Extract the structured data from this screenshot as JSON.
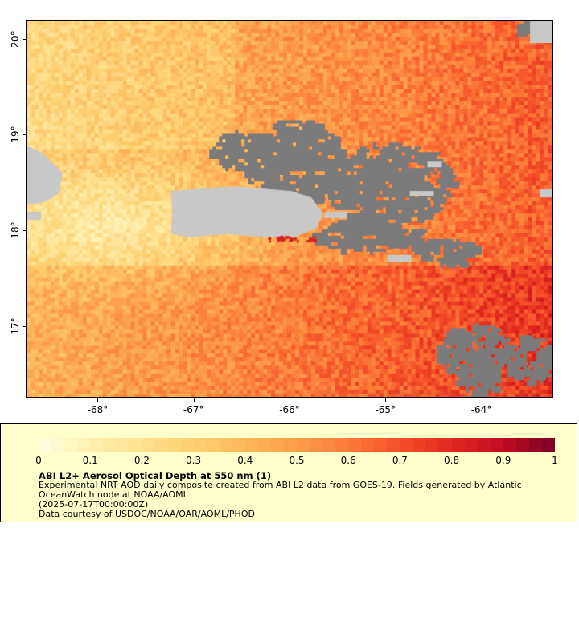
{
  "map": {
    "lon_range": [
      -68.75,
      -63.25
    ],
    "lat_range": [
      16.25,
      20.2
    ],
    "x_ticks": [
      "-68°",
      "-67°",
      "-66°",
      "-65°",
      "-64°"
    ],
    "x_tick_values": [
      -68,
      -67,
      -66,
      -65,
      -64
    ],
    "y_ticks": [
      "17°",
      "18°",
      "19°",
      "20°"
    ],
    "y_tick_values": [
      17,
      18,
      19,
      20
    ],
    "colors": {
      "land": "#c8c8c8",
      "no_data": "#7b7b7b",
      "frame": "#000000"
    }
  },
  "legend": {
    "background": "#ffffcc",
    "scale_min": 0,
    "scale_max": 1,
    "tick_labels": [
      "0",
      "0.1",
      "0.2",
      "0.3",
      "0.4",
      "0.5",
      "0.6",
      "0.7",
      "0.8",
      "0.9",
      "1"
    ],
    "colormap": [
      "#ffffe0",
      "#fff0b0",
      "#ffe090",
      "#fed070",
      "#fdb85a",
      "#fd9c48",
      "#fc7a38",
      "#f4502a",
      "#e0281e",
      "#c00c22",
      "#7a0026"
    ],
    "title": "ABI L2+ Aerosol Optical Depth at 550 nm (1)",
    "description_1": "Experimental NRT AOD daily composite created from ABI L2 data from GOES-19. Fields generated by Atlantic",
    "description_2": "OceanWatch node at NOAA/AOML",
    "description_3": "(2025-07-17T00:00:00Z)",
    "description_4": "Data courtesy of USDOC/NOAA/OAR/AOML/PHOD"
  }
}
